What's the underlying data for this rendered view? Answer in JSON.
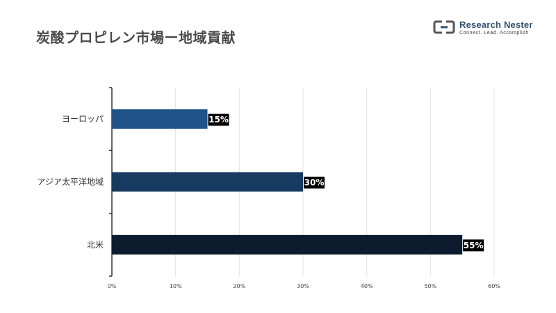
{
  "header": {
    "title": "炭酸プロピレン市場ー地域貢献"
  },
  "logo": {
    "name": "Research Nester",
    "tagline": "Connect. Lead. Accomplish"
  },
  "chart_data": {
    "type": "bar",
    "orientation": "horizontal",
    "title": "炭酸プロピレン市場ー地域貢献",
    "categories": [
      "ヨーロッパ",
      "アジア太平洋地域",
      "北米"
    ],
    "values": [
      15,
      30,
      55
    ],
    "value_labels": [
      "15%",
      "30%",
      "55%"
    ],
    "bar_colors": [
      "#1f5287",
      "#173a60",
      "#0d1b2e"
    ],
    "xlim": [
      0,
      60
    ],
    "x_ticks": [
      0,
      10,
      20,
      30,
      40,
      50,
      60
    ],
    "x_tick_labels": [
      "0%",
      "10%",
      "20%",
      "30%",
      "40%",
      "50%",
      "60%"
    ],
    "xlabel": "",
    "ylabel": "",
    "grid": true,
    "legend": "none"
  }
}
